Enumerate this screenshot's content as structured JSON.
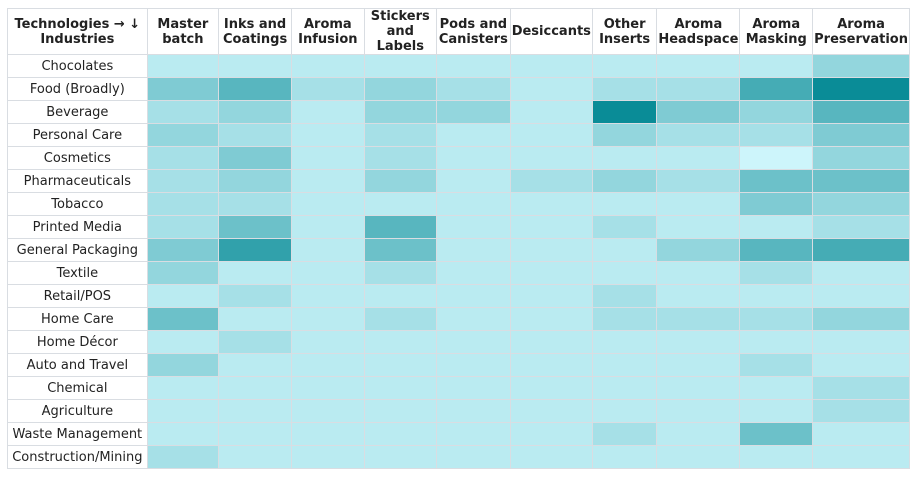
{
  "chart_data": {
    "type": "heatmap",
    "title": "",
    "corner_label": "Technologies → ↓ Industries",
    "columns": [
      "Master batch",
      "Inks and Coatings",
      "Aroma Infusion",
      "Stickers and Labels",
      "Pods and Canisters",
      "Desiccants",
      "Other Inserts",
      "Aroma Headspace",
      "Aroma Masking",
      "Aroma Preservation"
    ],
    "rows": [
      "Chocolates",
      "Food (Broadly)",
      "Beverage",
      "Personal Care",
      "Cosmetics",
      "Pharmaceuticals",
      "Tobacco",
      "Printed Media",
      "General Packaging",
      "Textile",
      "Retail/POS",
      "Home Care",
      "Home Décor",
      "Auto and Travel",
      "Chemical",
      "Agriculture",
      "Waste Management",
      "Construction/Mining"
    ],
    "values": [
      [
        1,
        1,
        1,
        1,
        1,
        1,
        1,
        1,
        1,
        3
      ],
      [
        4,
        6,
        2,
        3,
        2,
        1,
        2,
        2,
        7,
        10
      ],
      [
        2,
        3,
        1,
        3,
        3,
        1,
        10,
        4,
        3,
        6
      ],
      [
        3,
        2,
        1,
        2,
        1,
        1,
        3,
        2,
        2,
        4
      ],
      [
        2,
        4,
        1,
        2,
        1,
        1,
        1,
        1,
        0,
        3
      ],
      [
        2,
        3,
        1,
        3,
        1,
        2,
        3,
        2,
        5,
        5
      ],
      [
        2,
        2,
        1,
        1,
        1,
        1,
        1,
        1,
        4,
        3
      ],
      [
        2,
        5,
        1,
        6,
        1,
        1,
        2,
        1,
        1,
        2
      ],
      [
        4,
        8,
        1,
        5,
        1,
        1,
        1,
        3,
        6,
        7
      ],
      [
        3,
        1,
        1,
        2,
        1,
        1,
        1,
        1,
        2,
        1
      ],
      [
        1,
        2,
        1,
        1,
        1,
        1,
        2,
        1,
        1,
        1
      ],
      [
        5,
        1,
        1,
        2,
        1,
        1,
        2,
        2,
        2,
        3
      ],
      [
        1,
        2,
        1,
        1,
        1,
        1,
        1,
        1,
        1,
        1
      ],
      [
        3,
        1,
        1,
        1,
        1,
        1,
        1,
        1,
        2,
        1
      ],
      [
        1,
        1,
        1,
        1,
        1,
        1,
        1,
        1,
        1,
        2
      ],
      [
        1,
        1,
        1,
        1,
        1,
        1,
        1,
        1,
        1,
        2
      ],
      [
        1,
        1,
        1,
        1,
        1,
        1,
        2,
        1,
        5,
        1
      ],
      [
        2,
        1,
        1,
        1,
        1,
        1,
        1,
        1,
        1,
        1
      ]
    ],
    "value_range": [
      0,
      10
    ],
    "color_scale": {
      "low": "#cdf5fb",
      "high": "#0a8c97"
    },
    "grid": true,
    "legend": "none"
  }
}
